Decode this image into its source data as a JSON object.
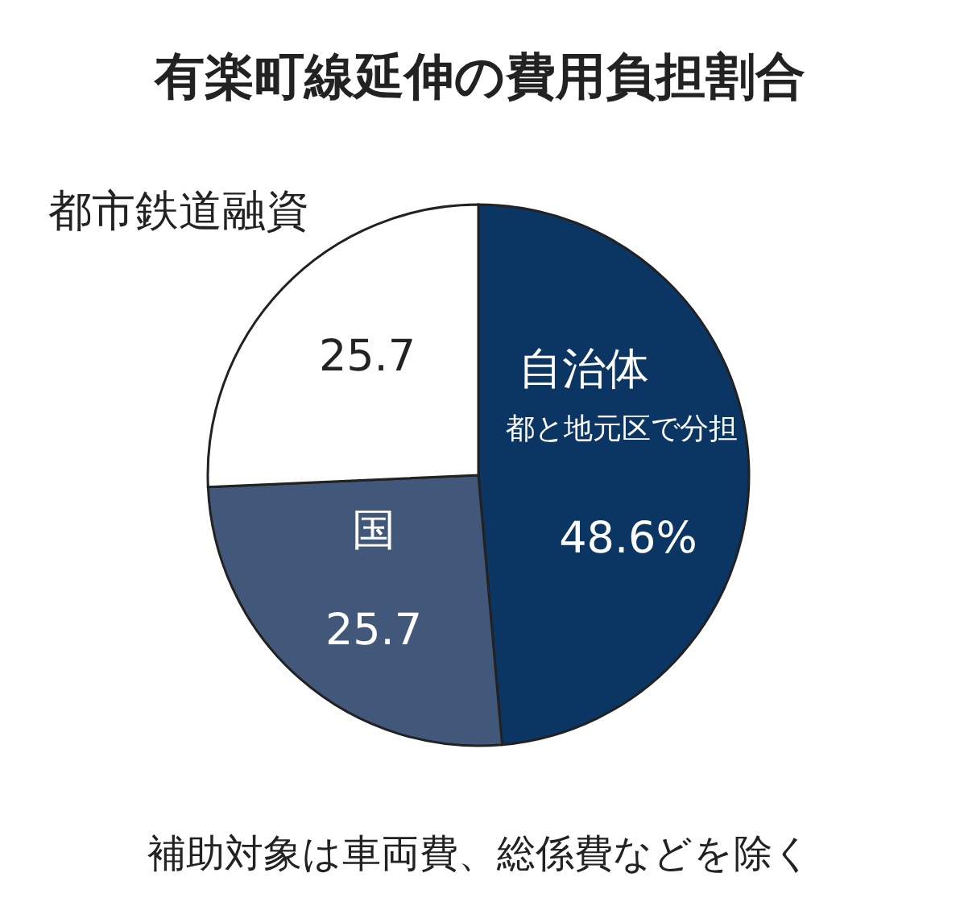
{
  "chart_data": {
    "type": "pie",
    "title": "有楽町線延伸の費用負担割合",
    "categories": [
      "自治体",
      "国",
      "都市鉄道融資"
    ],
    "values": [
      48.6,
      25.7,
      25.7
    ],
    "value_labels": [
      "48.6%",
      "25.7",
      "25.7"
    ],
    "colors": [
      "#0b3563",
      "#42587a",
      "#ffffff"
    ],
    "annotations": [
      "都と地元区で分担",
      "補助対象は車両費、総係費などを除く"
    ]
  }
}
